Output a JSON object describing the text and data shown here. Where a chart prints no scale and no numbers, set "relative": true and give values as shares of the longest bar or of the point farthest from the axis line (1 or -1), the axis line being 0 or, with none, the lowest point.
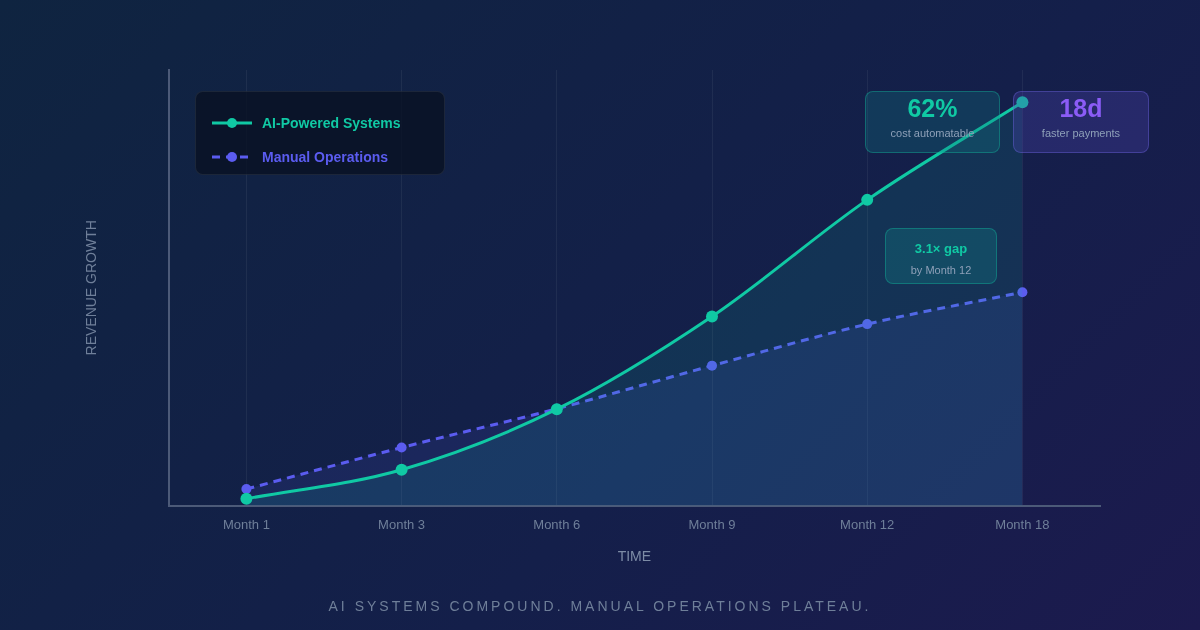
{
  "chart_data": {
    "type": "area",
    "relative": true,
    "xlabel": "TIME",
    "ylabel": "REVENUE GROWTH",
    "categories": [
      "Month 1",
      "Month 3",
      "Month 6",
      "Month 9",
      "Month 12",
      "Month 18"
    ],
    "series": [
      {
        "name": "AI-Powered Systems",
        "color": "#10c9a4",
        "line_style": "solid",
        "values": [
          0.017,
          0.089,
          0.239,
          0.469,
          0.758,
          1
        ]
      },
      {
        "name": "Manual Operations",
        "color": "#5b5cf0",
        "line_style": "dashed",
        "values": [
          0.041,
          0.144,
          0.24,
          0.347,
          0.45,
          0.529
        ]
      }
    ],
    "marker": "circle",
    "grid": "x",
    "legend": "top left",
    "annotations": [
      "62%",
      "cost automatable",
      "18d",
      "faster payments",
      "3.1× gap",
      "by Month 12",
      "AI SYSTEMS COMPOUND. MANUAL OPERATIONS PLATEAU."
    ]
  }
}
